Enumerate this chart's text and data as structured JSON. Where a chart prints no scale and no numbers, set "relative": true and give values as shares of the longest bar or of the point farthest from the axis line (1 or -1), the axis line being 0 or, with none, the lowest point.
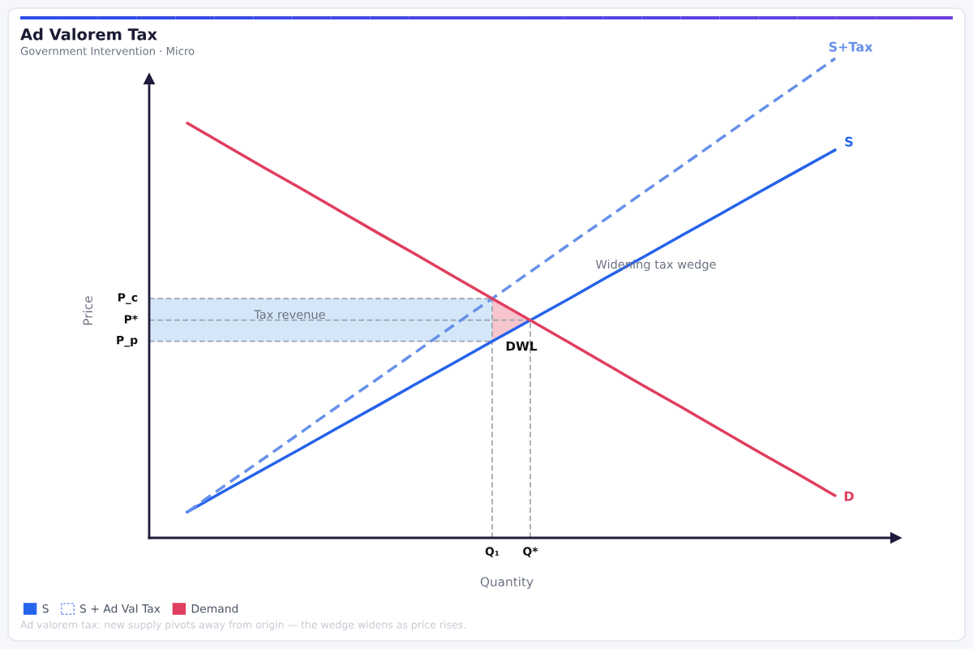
{
  "chart_data": {
    "type": "line",
    "title": "Ad Valorem Tax",
    "subtitle": "Government Intervention · Micro",
    "xlabel": "Quantity",
    "ylabel": "Price",
    "relative": true,
    "categories": [
      null,
      null,
      null,
      null,
      null,
      null,
      null,
      null,
      null,
      "Q₁",
      "Q*",
      null,
      null,
      null,
      null,
      null,
      null,
      null,
      null
    ],
    "series": [
      {
        "name": "S",
        "color": "#2563eb",
        "line_style": "solid",
        "values": [
          null,
          0.054,
          0.099,
          0.143,
          0.187,
          0.232,
          0.276,
          0.321,
          0.365,
          0.41,
          0.454,
          0.498,
          0.543,
          0.587,
          0.632,
          0.676,
          0.721,
          0.765,
          0.809
        ]
      },
      {
        "name": "S + Ad Val Tax",
        "color": "#6690ea",
        "line_style": "dashed",
        "values": [
          null,
          0.054,
          0.11,
          0.165,
          0.221,
          0.277,
          0.332,
          0.388,
          0.444,
          0.499,
          0.555,
          0.611,
          0.666,
          0.722,
          0.777,
          0.833,
          0.889,
          0.944,
          1.0
        ]
      },
      {
        "name": "Demand",
        "color": "#e03e5e",
        "line_style": "solid",
        "values": [
          null,
          0.865,
          0.819,
          0.773,
          0.728,
          0.682,
          0.636,
          0.591,
          0.545,
          0.499,
          0.454,
          0.408,
          0.362,
          0.316,
          0.271,
          0.225,
          0.179,
          0.134,
          0.088
        ],
        "lower": [
          null,
          null,
          null,
          null,
          null,
          null,
          null,
          null,
          null,
          0.41,
          0.454,
          null,
          null,
          null,
          null,
          null,
          null,
          null,
          null
        ],
        "upper": [
          null,
          null,
          null,
          null,
          null,
          null,
          null,
          null,
          null,
          0.499,
          0.454,
          null,
          null,
          null,
          null,
          null,
          null,
          null,
          null
        ]
      }
    ],
    "ref_lines": [
      {
        "axis": "y",
        "value": 0.499,
        "label": "P_c",
        "line_style": "dashed"
      },
      {
        "axis": "y",
        "value": 0.454,
        "label": "P*",
        "line_style": "dashed"
      },
      {
        "axis": "y",
        "value": 0.41,
        "label": "P_p",
        "line_style": "dashed"
      },
      {
        "axis": "x",
        "value": "Q₁",
        "line_style": "dashed"
      },
      {
        "axis": "x",
        "value": "Q*",
        "line_style": "dashed"
      }
    ],
    "bands": [
      {
        "axis": "y",
        "from": 0.41,
        "to": 0.499,
        "label": "Tax revenue",
        "color": "#d4e7f8"
      }
    ],
    "annotations": [
      "S+Tax",
      "S",
      "D",
      "DWL",
      "Widening tax wedge",
      "Ad valorem tax: new supply pivots away from origin — the wedge widens as price rises."
    ],
    "legend": "bottom left"
  }
}
